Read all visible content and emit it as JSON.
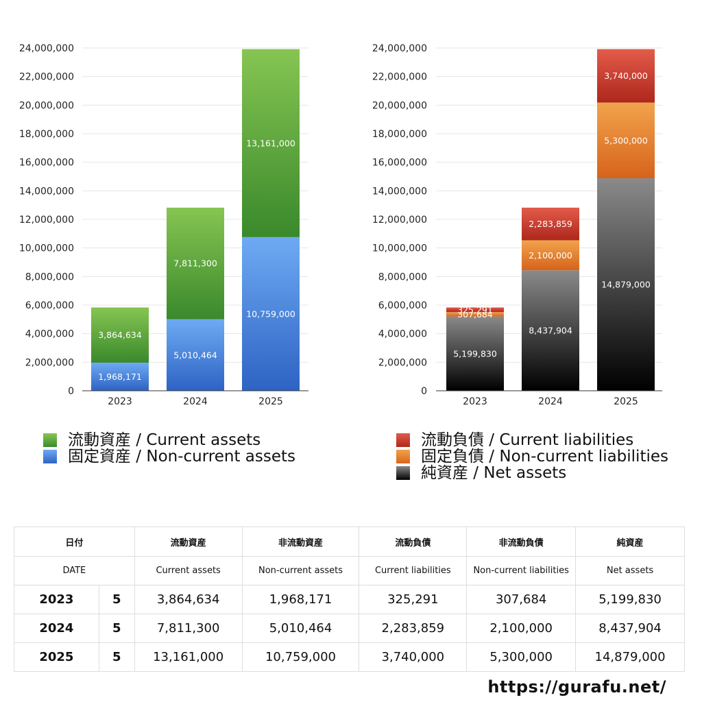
{
  "chart_data": [
    {
      "type": "bar",
      "stacked": true,
      "categories": [
        "2023",
        "2024",
        "2025"
      ],
      "ylim": [
        0,
        24000000
      ],
      "yticks": [
        "0",
        "2,000,000",
        "4,000,000",
        "6,000,000",
        "8,000,000",
        "10,000,000",
        "12,000,000",
        "14,000,000",
        "16,000,000",
        "18,000,000",
        "20,000,000",
        "22,000,000",
        "24,000,000"
      ],
      "series": [
        {
          "name": "固定資産 / Non-current assets",
          "color": "blue",
          "values": [
            1968171,
            5010464,
            10759000
          ],
          "labels": [
            "1,968,171",
            "5,010,464",
            "10,759,000"
          ]
        },
        {
          "name": "流動資産 / Current assets",
          "color": "green",
          "values": [
            3864634,
            7811300,
            13161000
          ],
          "labels": [
            "3,864,634",
            "7,811,300",
            "13,161,000"
          ]
        }
      ],
      "legend": [
        "流動資産 / Current assets",
        "固定資産 / Non-current assets"
      ]
    },
    {
      "type": "bar",
      "stacked": true,
      "categories": [
        "2023",
        "2024",
        "2025"
      ],
      "ylim": [
        0,
        24000000
      ],
      "yticks": [
        "0",
        "2,000,000",
        "4,000,000",
        "6,000,000",
        "8,000,000",
        "10,000,000",
        "12,000,000",
        "14,000,000",
        "16,000,000",
        "18,000,000",
        "20,000,000",
        "22,000,000",
        "24,000,000"
      ],
      "series": [
        {
          "name": "純資産 / Net assets",
          "color": "black",
          "values": [
            5199830,
            8437904,
            14879000
          ],
          "labels": [
            "5,199,830",
            "8,437,904",
            "14,879,000"
          ]
        },
        {
          "name": "固定負債 / Non-current liabilities",
          "color": "orange",
          "values": [
            307684,
            2100000,
            5300000
          ],
          "labels": [
            "307,684",
            "2,100,000",
            "5,300,000"
          ]
        },
        {
          "name": "流動負債 / Current liabilities",
          "color": "red",
          "values": [
            325291,
            2283859,
            3740000
          ],
          "labels": [
            "325,291",
            "2,283,859",
            "3,740,000"
          ]
        }
      ],
      "legend": [
        "流動負債 / Current liabilities",
        "固定負債 / Non-current liabilities",
        "純資産 / Net assets"
      ]
    }
  ],
  "table": {
    "header_jp": [
      "日付",
      "流動資産",
      "非流動資産",
      "流動負債",
      "非流動負債",
      "純資産"
    ],
    "header_en": [
      "DATE",
      "Current assets",
      "Non-current assets",
      "Current liabilities",
      "Non-current liabilities",
      "Net assets"
    ],
    "rows": [
      {
        "year": "2023",
        "count": "5",
        "values": [
          "3,864,634",
          "1,968,171",
          "325,291",
          "307,684",
          "5,199,830"
        ]
      },
      {
        "year": "2024",
        "count": "5",
        "values": [
          "7,811,300",
          "5,010,464",
          "2,283,859",
          "2,100,000",
          "8,437,904"
        ]
      },
      {
        "year": "2025",
        "count": "5",
        "values": [
          "13,161,000",
          "10,759,000",
          "3,740,000",
          "5,300,000",
          "14,879,000"
        ]
      }
    ]
  },
  "footer": {
    "url": "https://gurafu.net/"
  }
}
